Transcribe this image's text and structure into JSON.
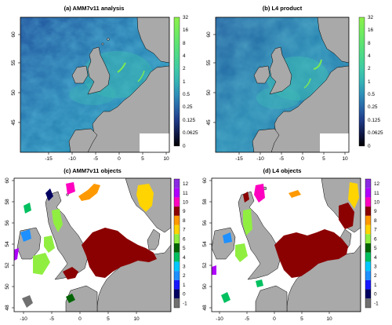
{
  "figure": {
    "panels": [
      {
        "key": "a",
        "title": "(a) AMM7v11 analysis",
        "kind": "field",
        "x_ticks": [
          "-15",
          "-10",
          "-5",
          "0",
          "5",
          "10"
        ],
        "y_ticks": [
          "60",
          "55",
          "50",
          "45"
        ],
        "colorbar": [
          "32",
          "16",
          "8",
          "4",
          "2",
          "1",
          "0.5",
          "0.25",
          "0.125",
          "0.0625",
          "0"
        ]
      },
      {
        "key": "b",
        "title": "(b) L4 product",
        "kind": "field",
        "x_ticks": [
          "-15",
          "-10",
          "-5",
          "0",
          "5",
          "10"
        ],
        "y_ticks": [
          "60",
          "55",
          "50",
          "45"
        ],
        "colorbar": [
          "32",
          "16",
          "8",
          "4",
          "2",
          "1",
          "0.5",
          "0.25",
          "0.125",
          "0.0625",
          "0"
        ]
      },
      {
        "key": "c",
        "title": "(c) AMM7v11 objects",
        "kind": "objects",
        "x_ticks": [
          "-10",
          "-5",
          "0",
          "5",
          "10"
        ],
        "y_ticks": [
          "60",
          "58",
          "56",
          "54",
          "52",
          "50",
          "48"
        ],
        "colorbar": [
          "12",
          "11",
          "10",
          "9",
          "8",
          "7",
          "6",
          "5",
          "4",
          "3",
          "2",
          "1",
          "0",
          "-1"
        ]
      },
      {
        "key": "d",
        "title": "(d) L4 objects",
        "kind": "objects",
        "x_ticks": [
          "-10",
          "-5",
          "0",
          "5",
          "10"
        ],
        "y_ticks": [
          "60",
          "58",
          "56",
          "54",
          "52",
          "50",
          "48"
        ],
        "colorbar": [
          "12",
          "11",
          "10",
          "9",
          "8",
          "7",
          "6",
          "5",
          "4",
          "3",
          "2",
          "1",
          "0",
          "-1"
        ]
      }
    ],
    "colors": {
      "land": "#a9a9a9",
      "field_scale": [
        "#000000",
        "#101a4a",
        "#1f3a86",
        "#2a66a8",
        "#2f8fb8",
        "#35b3b5",
        "#3fcaa6",
        "#4cd98a",
        "#5ee472",
        "#74ec5d",
        "#8df04a"
      ],
      "object_scale": [
        "#707070",
        "#000060",
        "#1818ff",
        "#1e90ff",
        "#00c8ff",
        "#00c060",
        "#006400",
        "#90ee40",
        "#ffd400",
        "#ff9900",
        "#8b0000",
        "#ff00c0",
        "#b000ff",
        "#8a2be2"
      ]
    }
  }
}
